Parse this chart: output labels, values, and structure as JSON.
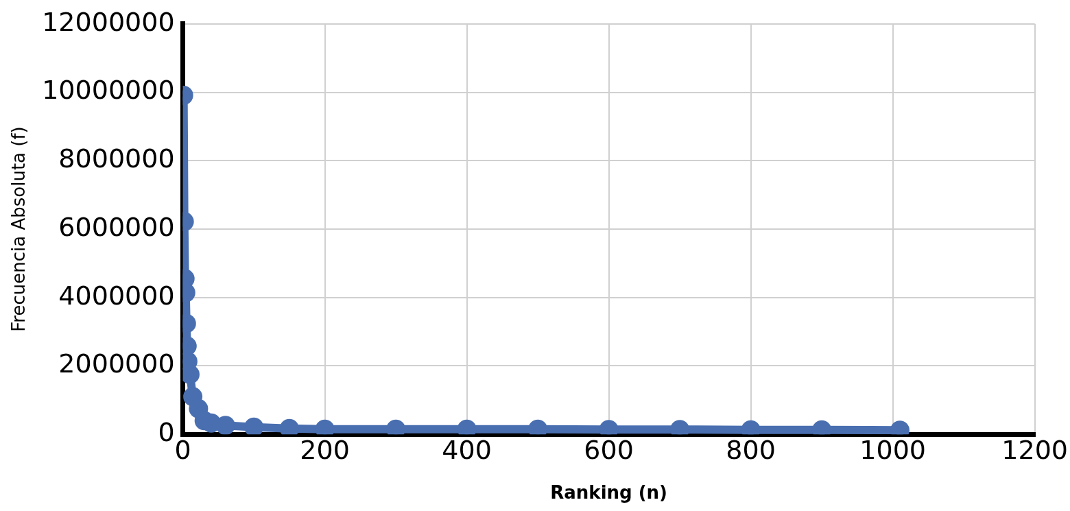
{
  "chart_data": {
    "type": "line",
    "xlabel": "Ranking (n)",
    "ylabel": "Frecuencia Absoluta (f)",
    "x": [
      1,
      2,
      3,
      4,
      5,
      6,
      7,
      10,
      14,
      22,
      30,
      40,
      60,
      100,
      150,
      200,
      300,
      400,
      500,
      600,
      700,
      800,
      900,
      1010
    ],
    "series": [
      {
        "color": "#4a6fb0",
        "values": [
          9910000,
          6220000,
          4550000,
          4140000,
          3240000,
          2580000,
          2130000,
          1750000,
          1100000,
          750000,
          400000,
          330000,
          260000,
          210000,
          170000,
          150000,
          150000,
          150000,
          150000,
          140000,
          140000,
          130000,
          130000,
          120000
        ]
      }
    ],
    "xlim": [
      0,
      1200
    ],
    "xticks": [
      0,
      200,
      400,
      600,
      800,
      1000,
      1200
    ],
    "ylim": [
      0,
      12000000
    ],
    "yticks": [
      0,
      2000000,
      4000000,
      6000000,
      8000000,
      10000000,
      12000000
    ],
    "grid": true,
    "legend": false,
    "marker": "circle",
    "line_style": "solid"
  }
}
